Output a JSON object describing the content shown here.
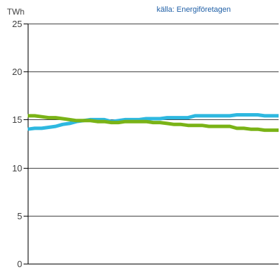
{
  "chart_data": {
    "type": "line",
    "title": "",
    "xlabel": "",
    "ylabel": "TWh",
    "source": "källa: Energiföretagen",
    "ylim": [
      0,
      25
    ],
    "yticks": [
      0,
      5,
      10,
      15,
      20,
      25
    ],
    "grid": "horizontal",
    "x": [
      0,
      1,
      2,
      3,
      4,
      5,
      6,
      7,
      8,
      9,
      10,
      11,
      12,
      13,
      14,
      15,
      16,
      17,
      18,
      19,
      20,
      21,
      22,
      23,
      24,
      25,
      26,
      27,
      28,
      29,
      30,
      31,
      32,
      33,
      34,
      35,
      36
    ],
    "series": [
      {
        "color": "#2eb8e0",
        "values": [
          14.0,
          14.1,
          14.1,
          14.2,
          14.3,
          14.5,
          14.6,
          14.8,
          14.9,
          15.0,
          15.0,
          15.0,
          14.8,
          14.9,
          15.0,
          15.0,
          15.0,
          15.1,
          15.1,
          15.1,
          15.2,
          15.2,
          15.2,
          15.2,
          15.4,
          15.4,
          15.4,
          15.4,
          15.4,
          15.4,
          15.5,
          15.5,
          15.5,
          15.5,
          15.4,
          15.4,
          15.4
        ]
      },
      {
        "color": "#7ab317",
        "values": [
          15.4,
          15.4,
          15.3,
          15.2,
          15.2,
          15.1,
          15.0,
          14.9,
          14.9,
          14.9,
          14.8,
          14.8,
          14.7,
          14.7,
          14.8,
          14.8,
          14.8,
          14.8,
          14.7,
          14.7,
          14.6,
          14.5,
          14.5,
          14.4,
          14.4,
          14.4,
          14.3,
          14.3,
          14.3,
          14.3,
          14.1,
          14.1,
          14.0,
          14.0,
          13.9,
          13.9,
          13.9
        ]
      }
    ],
    "colors": {
      "axis": "#000000",
      "grid": "#000000",
      "text": "#404040",
      "source_text": "#1f5fa6"
    }
  }
}
